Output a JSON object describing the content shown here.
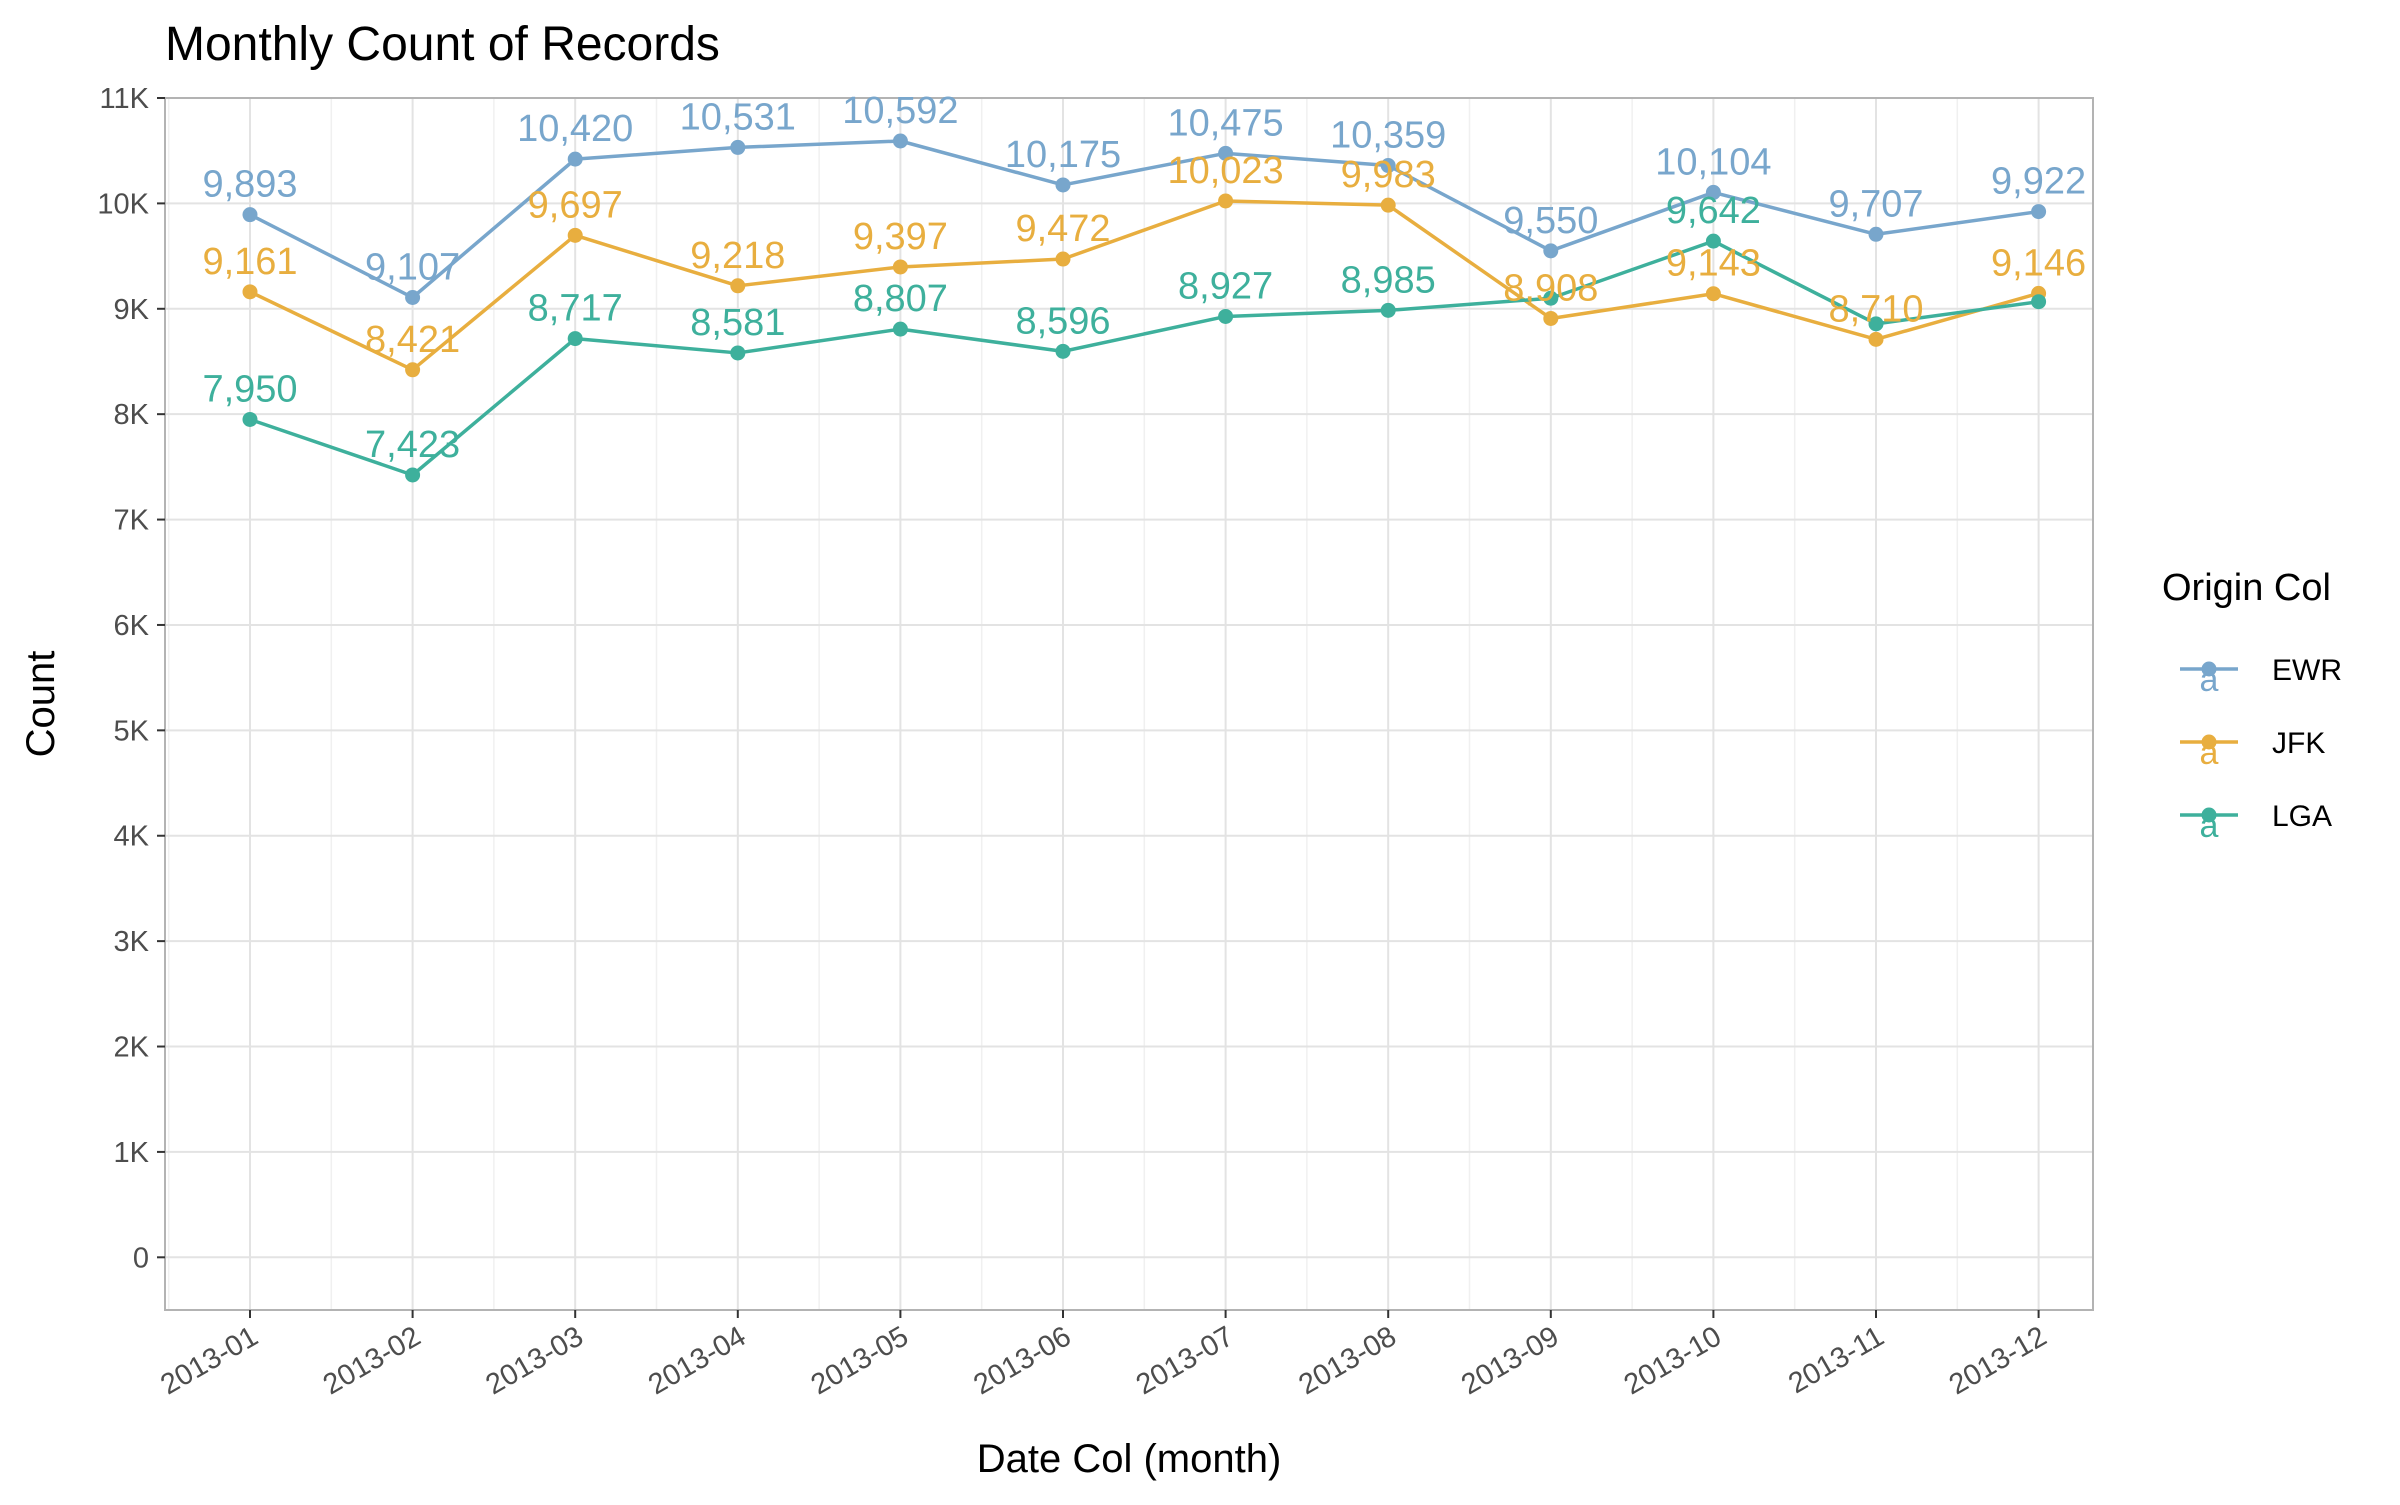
{
  "chart_data": {
    "type": "line",
    "title": "Monthly Count of Records",
    "xlabel": "Date Col (month)",
    "ylabel": "Count",
    "categories": [
      "2013-01",
      "2013-02",
      "2013-03",
      "2013-04",
      "2013-05",
      "2013-06",
      "2013-07",
      "2013-08",
      "2013-09",
      "2013-10",
      "2013-11",
      "2013-12"
    ],
    "ylim": [
      -500,
      11000
    ],
    "yticks": [
      0,
      1000,
      2000,
      3000,
      4000,
      5000,
      6000,
      7000,
      8000,
      9000,
      10000,
      11000
    ],
    "ytick_labels": [
      "0",
      "1K",
      "2K",
      "3K",
      "4K",
      "5K",
      "6K",
      "7K",
      "8K",
      "9K",
      "10K",
      "11K"
    ],
    "grid": true,
    "legend": {
      "title": "Origin Col",
      "position": "right",
      "glyph": "a"
    },
    "series": [
      {
        "name": "EWR",
        "color": "#78a6cc",
        "values": [
          9893,
          9107,
          10420,
          10531,
          10592,
          10175,
          10475,
          10359,
          9550,
          10104,
          9707,
          9922
        ],
        "labels": [
          "9,893",
          "9,107",
          "10,420",
          "10,531",
          "10,592",
          "10,175",
          "10,475",
          "10,359",
          "9,550",
          "10,104",
          "9,707",
          "9,922"
        ]
      },
      {
        "name": "JFK",
        "color": "#e8ae3f",
        "values": [
          9161,
          8421,
          9697,
          9218,
          9397,
          9472,
          10023,
          9983,
          8908,
          9143,
          8710,
          9146
        ],
        "labels": [
          "9,161",
          "8,421",
          "9,697",
          "9,218",
          "9,397",
          "9,472",
          "10,023",
          "9,983",
          "8,908",
          "9,143",
          "8,710",
          "9,146"
        ]
      },
      {
        "name": "LGA",
        "color": "#3eb09c",
        "values": [
          7950,
          7423,
          8717,
          8581,
          8807,
          8596,
          8927,
          8985,
          9100,
          9642,
          8857,
          9067
        ],
        "labels": [
          "7,950",
          "7,423",
          "8,717",
          "8,581",
          "8,807",
          "8,596",
          "8,927",
          "8,985",
          "",
          "9,642",
          "",
          ""
        ]
      }
    ]
  }
}
